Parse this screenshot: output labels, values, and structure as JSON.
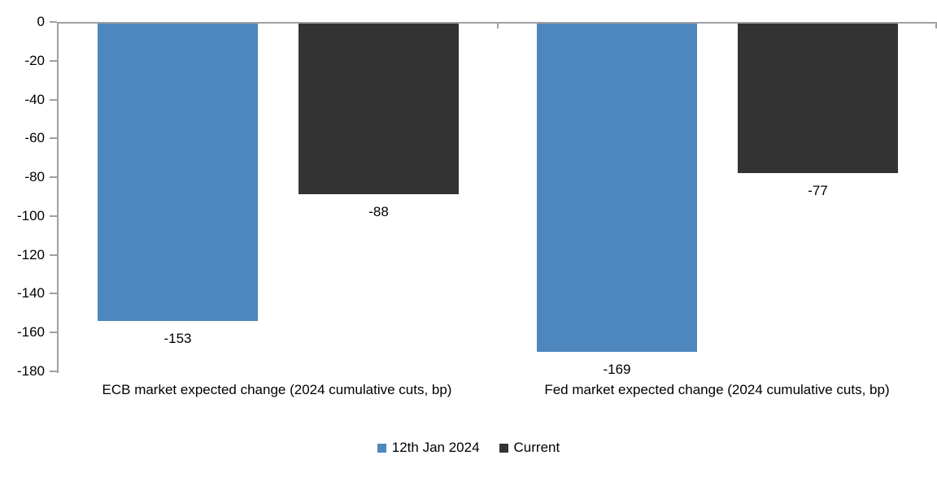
{
  "chart_data": {
    "type": "bar",
    "title": "",
    "categories": [
      "ECB market expected change (2024 cumulative cuts, bp)",
      "Fed market expected change (2024 cumulative cuts, bp)"
    ],
    "series": [
      {
        "name": "12th Jan 2024",
        "color": "#4E87BE",
        "values": [
          -153,
          -169
        ],
        "labels": [
          "-153",
          "-169"
        ]
      },
      {
        "name": "Current",
        "color": "#333333",
        "values": [
          -88,
          -77
        ],
        "labels": [
          "-88",
          "-77"
        ]
      }
    ],
    "y_axis": {
      "ylim": [
        -180,
        0
      ],
      "tick_interval": 20,
      "tick_labels": [
        "0",
        "-20",
        "-40",
        "-60",
        "-80",
        "-100",
        "-120",
        "-140",
        "-160",
        "-180"
      ]
    },
    "data_labels_position": "outside-end",
    "grid": false,
    "legend_position": "bottom",
    "colors": {
      "axis": "#A0A0A0",
      "text": "#000000",
      "background": "#FFFFFF"
    }
  }
}
